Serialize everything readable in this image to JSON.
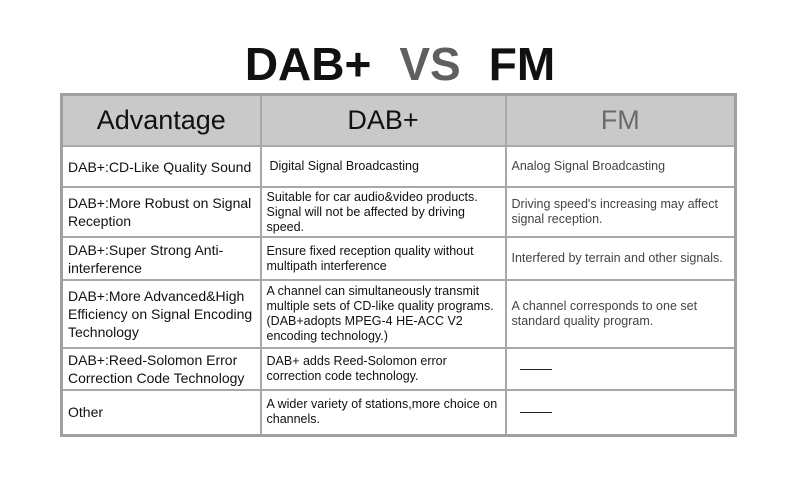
{
  "title": {
    "left": "DAB+",
    "middle": "VS",
    "right": "FM"
  },
  "headers": [
    "Advantage",
    "DAB+",
    "FM"
  ],
  "rows": [
    {
      "advantage": "DAB+:CD-Like Quality Sound",
      "dab": "Digital Signal Broadcasting",
      "fm": "Analog Signal Broadcasting"
    },
    {
      "advantage": "DAB+:More Robust on Signal Reception",
      "dab": "Suitable for car audio&video products. Signal will not be affected by driving speed.",
      "fm": "Driving speed's increasing may affect signal reception."
    },
    {
      "advantage": "DAB+:Super Strong Anti-interference",
      "dab": "Ensure fixed reception quality without multipath interference",
      "fm": "Interfered by terrain and other signals."
    },
    {
      "advantage": "DAB+:More Advanced&High Efficiency on Signal Encoding Technology",
      "dab": "A channel can simultaneously transmit multiple sets of CD-like quality programs.(DAB+adopts MPEG-4 HE-ACC V2 encoding technology.)",
      "fm": "A channel corresponds to one set standard quality program."
    },
    {
      "advantage": "DAB+:Reed-Solomon Error Correction Code Technology",
      "dab": "DAB+ adds Reed-Solomon error correction code technology.",
      "fm": null
    },
    {
      "advantage": "Other",
      "dab": "A wider variety of stations,more choice on channels.",
      "fm": null
    }
  ]
}
